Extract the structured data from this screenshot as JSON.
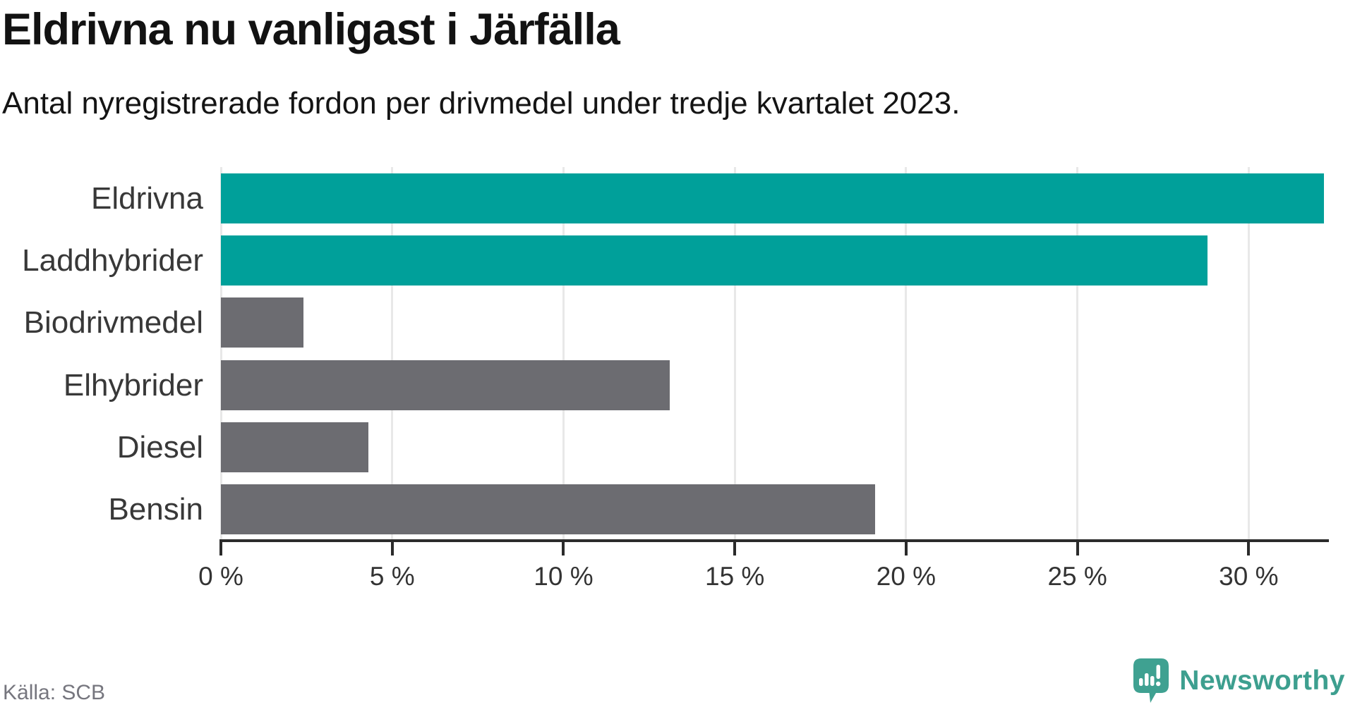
{
  "chart_data": {
    "type": "bar",
    "orientation": "horizontal",
    "title": "Eldrivna nu vanligast i Järfälla",
    "subtitle": "Antal nyregistrerade fordon per drivmedel under tredje kvartalet 2023.",
    "categories": [
      "Eldrivna",
      "Laddhybrider",
      "Biodrivmedel",
      "Elhybrider",
      "Diesel",
      "Bensin"
    ],
    "values": [
      32.2,
      28.8,
      2.4,
      13.1,
      4.3,
      19.1
    ],
    "unit": "%",
    "bar_colors": [
      "#00A09A",
      "#00A09A",
      "#6C6C71",
      "#6C6C71",
      "#6C6C71",
      "#6C6C71"
    ],
    "xlabel": "",
    "ylabel": "",
    "xlim": [
      0,
      32.3
    ],
    "xticks": [
      0,
      5,
      10,
      15,
      20,
      25,
      30
    ],
    "tick_suffix": " %",
    "grid": "vertical-only",
    "legend": "none"
  },
  "colors": {
    "accent_teal": "#00A09A",
    "neutral_gray": "#6C6C71",
    "gridline": "#E8E8E8",
    "axis": "#2B2B2B",
    "heading_text": "#121212",
    "muted_text": "#76767E",
    "brand_teal": "#3D9F8F"
  },
  "footer": {
    "source": "Källa: SCB",
    "brand": "Newsworthy"
  },
  "icons": {
    "brand_icon": "newsworthy-speech-bubble-barchart-icon"
  }
}
